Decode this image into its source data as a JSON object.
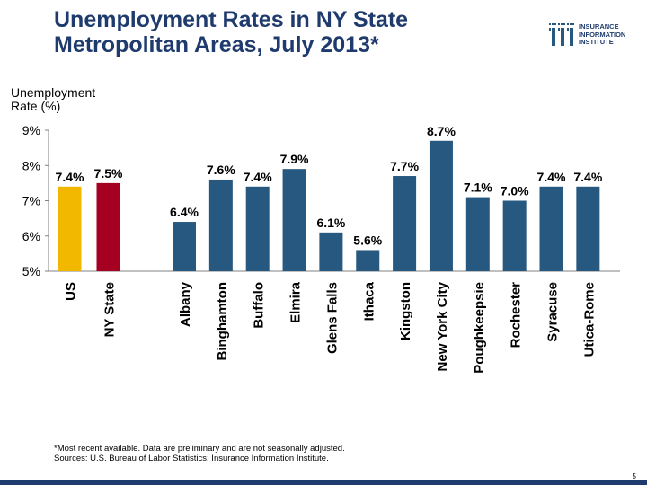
{
  "slide": {
    "title_line1": "Unemployment Rates in NY State",
    "title_line2": "Metropolitan Areas, July 2013*",
    "logo_lines": [
      "INSURANCE",
      "INFORMATION",
      "INSTITUTE"
    ],
    "footnote_line1": "*Most recent available.  Data are preliminary and are not seasonally adjusted.",
    "footnote_line2": "Sources: U.S. Bureau of Labor Statistics; Insurance Information Institute.",
    "page_number": "5"
  },
  "colors": {
    "title": "#1f3b6e",
    "us": "#f2b800",
    "ny_state": "#a50021",
    "metro": "#27587f",
    "rule": "#1f3b6e"
  },
  "chart_data": {
    "type": "bar",
    "title": "Unemployment Rates in NY State Metropolitan Areas, July 2013*",
    "ylabel": "Unemployment Rate (%)",
    "ylabel_lines": [
      "Unemployment",
      "Rate (%)"
    ],
    "ylim": [
      5,
      9
    ],
    "yticks": [
      5,
      6,
      7,
      8,
      9
    ],
    "ytick_labels": [
      "5%",
      "6%",
      "7%",
      "8%",
      "9%"
    ],
    "categories": [
      "US",
      "NY State",
      "Albany",
      "Binghamton",
      "Buffalo",
      "Elmira",
      "Glens Falls",
      "Ithaca",
      "Kingston",
      "New York City",
      "Poughkeepsie",
      "Rochester",
      "Syracuse",
      "Utica-Rome"
    ],
    "values": [
      7.4,
      7.5,
      6.4,
      7.6,
      7.4,
      7.9,
      6.1,
      5.6,
      7.7,
      8.7,
      7.1,
      7.0,
      7.4,
      7.4
    ],
    "data_labels": [
      "7.4%",
      "7.5%",
      "6.4%",
      "7.6%",
      "7.4%",
      "7.9%",
      "6.1%",
      "5.6%",
      "7.7%",
      "8.7%",
      "7.1%",
      "7.0%",
      "7.4%",
      "7.4%"
    ],
    "bar_colors": [
      "us",
      "ny_state",
      "metro",
      "metro",
      "metro",
      "metro",
      "metro",
      "metro",
      "metro",
      "metro",
      "metro",
      "metro",
      "metro",
      "metro"
    ]
  }
}
